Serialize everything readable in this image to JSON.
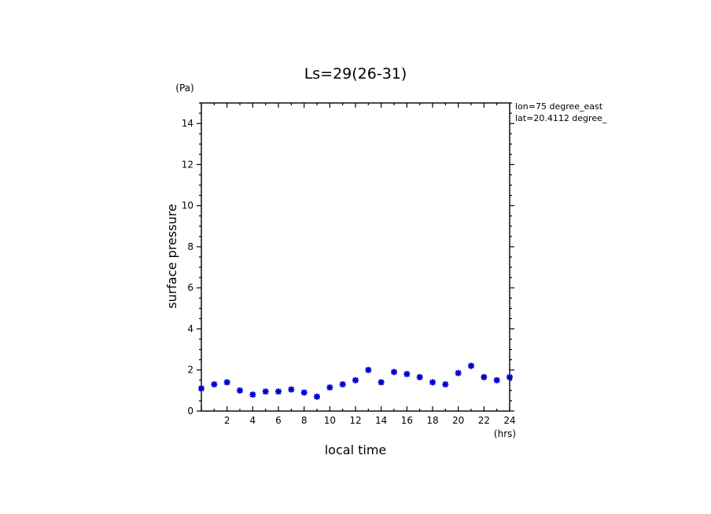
{
  "chart_data": {
    "type": "scatter",
    "title": "Ls=29(26-31)",
    "xlabel": "local time",
    "ylabel": "surface pressure",
    "xunit": "(hrs)",
    "yunit": "(Pa)",
    "xlim": [
      0,
      24
    ],
    "ylim": [
      0,
      15
    ],
    "xticks_major": [
      2,
      4,
      6,
      8,
      10,
      12,
      14,
      16,
      18,
      20,
      22,
      24
    ],
    "yticks_major": [
      0,
      2,
      4,
      6,
      8,
      10,
      12,
      14
    ],
    "grid": false,
    "marker": "asterisk",
    "marker_color": "#0000cc",
    "annotations": [
      "lon=75 degree_east",
      "lat=20.4112 degree_"
    ],
    "series": [
      {
        "x": [
          0,
          1,
          2,
          3,
          4,
          5,
          6,
          7,
          8,
          9,
          10,
          11,
          12,
          13,
          14,
          15,
          16,
          17,
          18,
          19,
          20,
          21,
          22,
          23,
          24
        ],
        "values": [
          1.1,
          1.3,
          1.4,
          1.0,
          0.8,
          0.95,
          0.95,
          1.05,
          0.9,
          0.7,
          1.15,
          1.3,
          1.5,
          2.0,
          1.4,
          1.9,
          1.8,
          1.65,
          1.4,
          1.3,
          1.85,
          2.2,
          1.65,
          1.5,
          1.65
        ]
      }
    ]
  }
}
